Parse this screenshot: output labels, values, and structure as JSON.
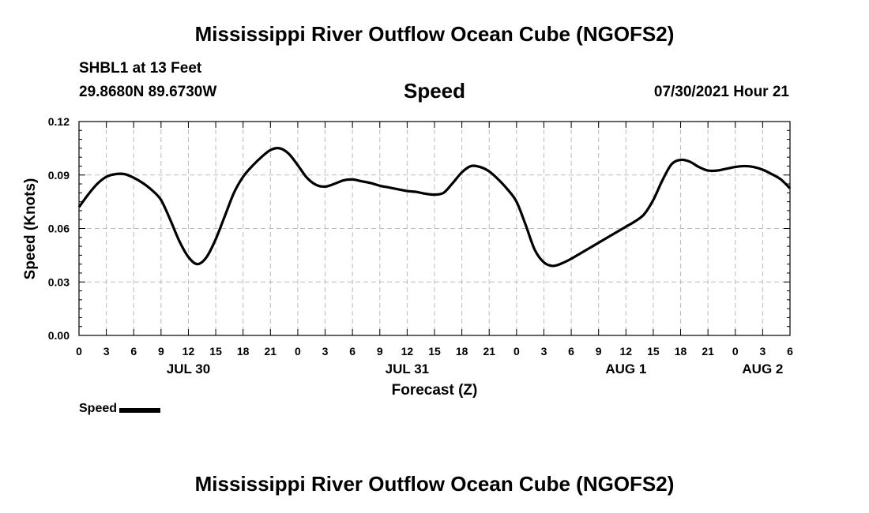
{
  "header": {
    "title": "Mississippi River Outflow Ocean Cube (NGOFS2)",
    "station": "SHBL1 at 13 Feet",
    "coords": "29.8680N  89.6730W",
    "variable": "Speed",
    "datetime": "07/30/2021 Hour 21"
  },
  "footer": {
    "title": "Mississippi River Outflow Ocean Cube (NGOFS2)"
  },
  "legend": {
    "label": "Speed"
  },
  "colors": {
    "line": "#000000",
    "grid": "#bbbbbb",
    "axis": "#000000"
  },
  "chart_data": {
    "type": "line",
    "title": "Speed",
    "xlabel": "Forecast (Z)",
    "ylabel": "Speed (Knots)",
    "ylim": [
      0,
      0.12
    ],
    "y_ticks": [
      "0.00",
      "0.03",
      "0.06",
      "0.09",
      "0.12"
    ],
    "xlim_hours": [
      0,
      78
    ],
    "x_tick_labels": [
      "0",
      "3",
      "6",
      "9",
      "12",
      "15",
      "18",
      "21",
      "0",
      "3",
      "6",
      "9",
      "12",
      "15",
      "18",
      "21",
      "0",
      "3",
      "6",
      "9",
      "12",
      "15",
      "18",
      "21",
      "0",
      "3",
      "6"
    ],
    "day_labels": [
      {
        "label": "JUL 30",
        "hour": 12
      },
      {
        "label": "JUL 31",
        "hour": 36
      },
      {
        "label": "AUG 1",
        "hour": 60
      },
      {
        "label": "AUG 2",
        "hour": 75
      }
    ],
    "grid": true,
    "series": [
      {
        "name": "Speed",
        "x_hours": [
          0,
          1,
          2,
          3,
          4,
          5,
          6,
          7,
          8,
          9,
          10,
          11,
          12,
          13,
          14,
          15,
          16,
          17,
          18,
          19,
          20,
          21,
          22,
          23,
          24,
          25,
          26,
          27,
          28,
          29,
          30,
          31,
          32,
          33,
          34,
          35,
          36,
          37,
          38,
          39,
          40,
          41,
          42,
          43,
          44,
          45,
          46,
          47,
          48,
          49,
          50,
          51,
          52,
          53,
          54,
          55,
          56,
          57,
          58,
          59,
          60,
          61,
          62,
          63,
          64,
          65,
          66,
          67,
          68,
          69,
          70,
          71,
          72,
          73,
          74,
          75,
          76,
          77,
          78
        ],
        "values": [
          0.072,
          0.079,
          0.085,
          0.089,
          0.0905,
          0.0905,
          0.0885,
          0.0855,
          0.0815,
          0.076,
          0.065,
          0.053,
          0.044,
          0.04,
          0.044,
          0.054,
          0.067,
          0.08,
          0.089,
          0.095,
          0.1,
          0.104,
          0.105,
          0.102,
          0.0955,
          0.0885,
          0.0845,
          0.0835,
          0.085,
          0.087,
          0.0875,
          0.0865,
          0.0855,
          0.084,
          0.083,
          0.082,
          0.081,
          0.0805,
          0.0795,
          0.079,
          0.08,
          0.0855,
          0.0915,
          0.095,
          0.0945,
          0.092,
          0.0875,
          0.082,
          0.075,
          0.062,
          0.048,
          0.041,
          0.039,
          0.0405,
          0.043,
          0.046,
          0.049,
          0.052,
          0.055,
          0.058,
          0.061,
          0.064,
          0.068,
          0.076,
          0.087,
          0.096,
          0.0985,
          0.0975,
          0.0945,
          0.0925,
          0.0925,
          0.0935,
          0.0945,
          0.095,
          0.0945,
          0.093,
          0.0905,
          0.0875,
          0.0825
        ]
      }
    ]
  }
}
